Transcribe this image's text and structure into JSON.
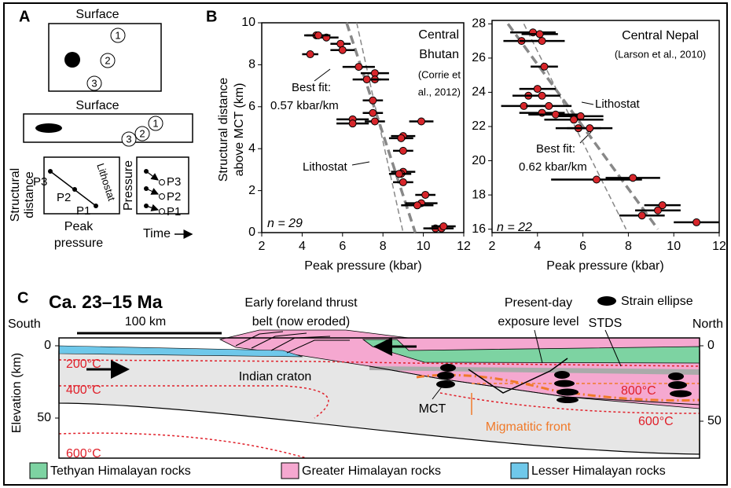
{
  "panel_a": {
    "label": "A",
    "surface_top": "Surface",
    "surface_bottom": "Surface",
    "markers": [
      1,
      2,
      3
    ],
    "plot1": {
      "y_label": [
        "Structural",
        "distance"
      ],
      "x_label": [
        "Peak",
        "pressure"
      ],
      "points": [
        "P1",
        "P2",
        "P3"
      ],
      "line_label": "Lithostat"
    },
    "plot2": {
      "y_label": "Pressure",
      "x_label": "Time",
      "points": [
        "P1",
        "P2",
        "P3"
      ]
    }
  },
  "panel_b_label": "B",
  "chart_data": [
    {
      "type": "scatter",
      "title": [
        "Central",
        "Bhutan"
      ],
      "subtitle": [
        "(Corrie et",
        "al., 2012)"
      ],
      "x_label": "Peak pressure (kbar)",
      "y_label": [
        "Structural distance",
        "above MCT (km)"
      ],
      "x": [
        4.7,
        5.2,
        4.8,
        5.9,
        6.0,
        4.4,
        6.8,
        7.6,
        7.6,
        7.2,
        7.5,
        7.5,
        7.6,
        6.5,
        6.5,
        9.9,
        9.0,
        8.9,
        9.0,
        9.0,
        8.9,
        8.8,
        9.0,
        10.1,
        9.9,
        9.7,
        10.6,
        10.9,
        11.0
      ],
      "y": [
        9.4,
        9.3,
        9.4,
        9.0,
        8.7,
        8.5,
        7.9,
        7.6,
        7.3,
        7.3,
        6.3,
        5.7,
        5.3,
        5.4,
        5.2,
        5.3,
        4.6,
        4.5,
        3.9,
        2.9,
        2.8,
        2.8,
        2.4,
        1.8,
        1.4,
        1.3,
        0.2,
        0.2,
        0.3
      ],
      "x_err": [
        0.6,
        0.6,
        0.6,
        0.5,
        0.6,
        0.4,
        0.8,
        0.7,
        0.7,
        0.7,
        0.5,
        0.5,
        0.5,
        0.8,
        0.8,
        0.6,
        0.6,
        0.6,
        0.5,
        0.6,
        0.5,
        0.5,
        0.5,
        0.5,
        0.8,
        0.8,
        0.6,
        0.6,
        0.6
      ],
      "color": "#d7262b",
      "xlim": [
        2,
        12
      ],
      "ylim": [
        0,
        10
      ],
      "xticks": [
        2,
        4,
        6,
        8,
        10,
        12
      ],
      "yticks": [
        0,
        2,
        4,
        6,
        8,
        10
      ],
      "n_label": "n = 29",
      "best_fit_label": [
        "Best fit:",
        "0.57 kbar/km"
      ],
      "lithostat_label": "Lithostat",
      "lithostat_line": {
        "x": [
          6.7,
          9.0
        ],
        "y": [
          10,
          0
        ]
      },
      "best_fit_line": {
        "x": [
          6.2,
          9.6
        ],
        "y": [
          10,
          0
        ]
      }
    },
    {
      "type": "scatter",
      "title": [
        "Central Nepal"
      ],
      "subtitle": [
        "(Larson et al., 2010)"
      ],
      "x_label": "Peak pressure (kbar)",
      "x": [
        3.8,
        4.1,
        3.3,
        4.2,
        4.3,
        4.0,
        3.6,
        4.2,
        3.4,
        4.5,
        4.2,
        4.8,
        5.9,
        5.6,
        5.8,
        6.3,
        6.6,
        8.2,
        9.5,
        9.3,
        8.6,
        11.0
      ],
      "y": [
        27.5,
        27.4,
        27.0,
        27.0,
        25.5,
        24.2,
        23.8,
        23.8,
        23.2,
        23.2,
        22.8,
        22.7,
        22.6,
        22.4,
        21.9,
        21.9,
        18.9,
        19.0,
        17.4,
        17.1,
        16.8,
        16.4
      ],
      "x_err": [
        1.0,
        0.8,
        0.8,
        1.0,
        0.6,
        0.8,
        0.7,
        0.8,
        1.0,
        1.0,
        1.0,
        1.2,
        1.0,
        1.3,
        1.0,
        1.0,
        2.0,
        1.2,
        0.8,
        1.0,
        1.0,
        1.0
      ],
      "color": "#d7262b",
      "xlim": [
        2,
        12
      ],
      "ylim": [
        15.8,
        28.2
      ],
      "xticks": [
        2,
        4,
        6,
        8,
        10,
        12
      ],
      "yticks": [
        16,
        18,
        20,
        22,
        24,
        26,
        28
      ],
      "n_label": "n = 22",
      "best_fit_label": [
        "Best fit:",
        "0.62 kbar/km"
      ],
      "lithostat_label": "Lithostat",
      "lithostat_line": {
        "x": [
          3.4,
          7.9
        ],
        "y": [
          28,
          16
        ]
      },
      "best_fit_line": {
        "x": [
          2.7,
          9.3
        ],
        "y": [
          28,
          16
        ]
      }
    }
  ],
  "panel_c": {
    "label": "C",
    "title": "Ca. 23–15 Ma",
    "south": "South",
    "north": "North",
    "scale": "100 km",
    "foreland": [
      "Early foreland thrust",
      "belt (now eroded)"
    ],
    "exposure": [
      "Present-day",
      "exposure level"
    ],
    "strain": "Strain ellipse",
    "stds": "STDS",
    "y_label": "Elevation (km)",
    "y_ticks": [
      0,
      50
    ],
    "isotherms": [
      "200°C",
      "400°C",
      "600°C",
      "800°C",
      "600°C"
    ],
    "craton": "Indian craton",
    "mct": "MCT",
    "migmatitic": "Migmatitic front",
    "legend": [
      {
        "name": "Tethyan Himalayan rocks",
        "color": "#7dd3a2"
      },
      {
        "name": "Greater Himalayan rocks",
        "color": "#f5a8d0"
      },
      {
        "name": "Lesser Himalayan rocks",
        "color": "#6fc8ea"
      }
    ]
  }
}
